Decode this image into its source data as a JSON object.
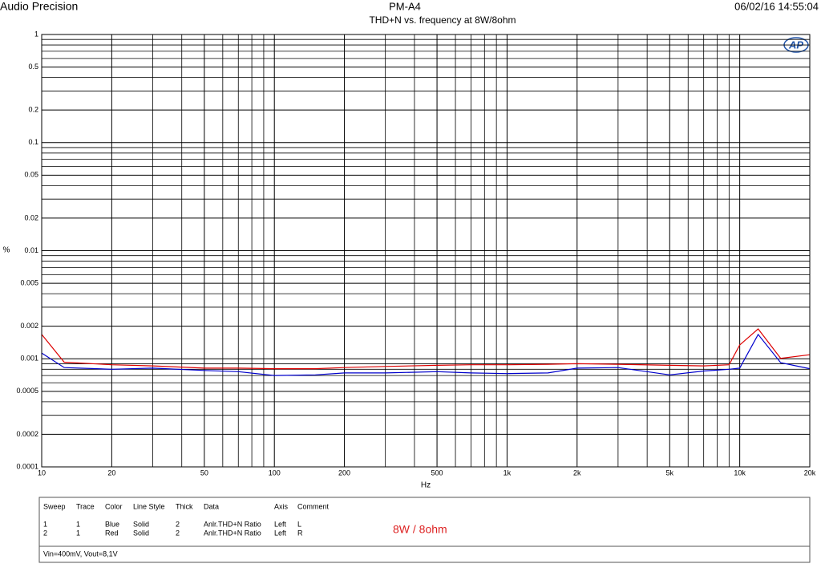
{
  "chart_data": {
    "type": "line",
    "brand": "Audio Precision",
    "title": "PM-A4",
    "timestamp": "06/02/16 14:55:04",
    "subtitle": "THD+N vs. frequency at 8W/8ohm",
    "logo": "AP",
    "ylabel": "%",
    "xlabel": "Hz",
    "log_x": true,
    "log_y": true,
    "grid": true,
    "x": [
      10,
      12.5,
      20,
      30,
      50,
      70,
      100,
      150,
      200,
      300,
      500,
      700,
      1000,
      1500,
      2000,
      3000,
      5000,
      7000,
      9000,
      10000,
      12000,
      15000,
      20000
    ],
    "series": [
      {
        "color": "#0000cc",
        "values": [
          0.00113,
          0.00083,
          0.0008,
          0.00082,
          0.00078,
          0.00076,
          0.0007,
          0.00071,
          0.00074,
          0.00074,
          0.00076,
          0.00074,
          0.00073,
          0.00074,
          0.00082,
          0.00083,
          0.00071,
          0.00077,
          0.0008,
          0.00082,
          0.00168,
          0.00092,
          0.00081
        ]
      },
      {
        "color": "#dd0000",
        "values": [
          0.00168,
          0.00093,
          0.00088,
          0.00086,
          0.00082,
          0.00082,
          0.00081,
          0.00081,
          0.00083,
          0.00085,
          0.00087,
          0.00088,
          0.00088,
          0.00089,
          0.0009,
          0.00089,
          0.00087,
          0.00086,
          0.00088,
          0.00134,
          0.00189,
          0.00101,
          0.00109
        ]
      }
    ],
    "xlim": [
      10,
      20000
    ],
    "ylim": [
      0.0001,
      1
    ],
    "xticks": [
      10,
      20,
      50,
      100,
      200,
      500,
      {
        "value": 1000,
        "label": "1k"
      },
      {
        "value": 2000,
        "label": "2k"
      },
      {
        "value": 5000,
        "label": "5k"
      },
      {
        "value": 10000,
        "label": "10k"
      },
      {
        "value": 20000,
        "label": "20k"
      }
    ],
    "yticks": [
      1,
      0.5,
      0.2,
      0.1,
      0.05,
      0.02,
      0.01,
      0.005,
      0.002,
      0.001,
      0.0005,
      0.0002,
      0.0001
    ],
    "xminor": [
      30,
      40,
      60,
      70,
      80,
      90,
      300,
      400,
      600,
      700,
      800,
      900,
      3000,
      4000,
      6000,
      7000,
      8000,
      9000
    ],
    "yminor": [
      0.0003,
      0.0004,
      0.0006,
      0.0007,
      0.0008,
      0.0009,
      0.003,
      0.004,
      0.006,
      0.007,
      0.008,
      0.009,
      0.03,
      0.04,
      0.06,
      0.07,
      0.08,
      0.09,
      0.3,
      0.4,
      0.6,
      0.7,
      0.8,
      0.9
    ],
    "legend_table": {
      "columns": [
        "Sweep",
        "Trace",
        "Color",
        "Line Style",
        "Thick",
        "Data",
        "Axis",
        "Comment"
      ],
      "rows": [
        [
          1,
          1,
          "Blue",
          "Solid",
          2,
          "Anlr.THD+N Ratio",
          "Left",
          "L"
        ],
        [
          2,
          1,
          "Red",
          "Solid",
          2,
          "Anlr.THD+N Ratio",
          "Left",
          "R"
        ]
      ]
    },
    "annotation": "8W / 8ohm",
    "footnote": "Vin=400mV, Vout=8,1V"
  }
}
